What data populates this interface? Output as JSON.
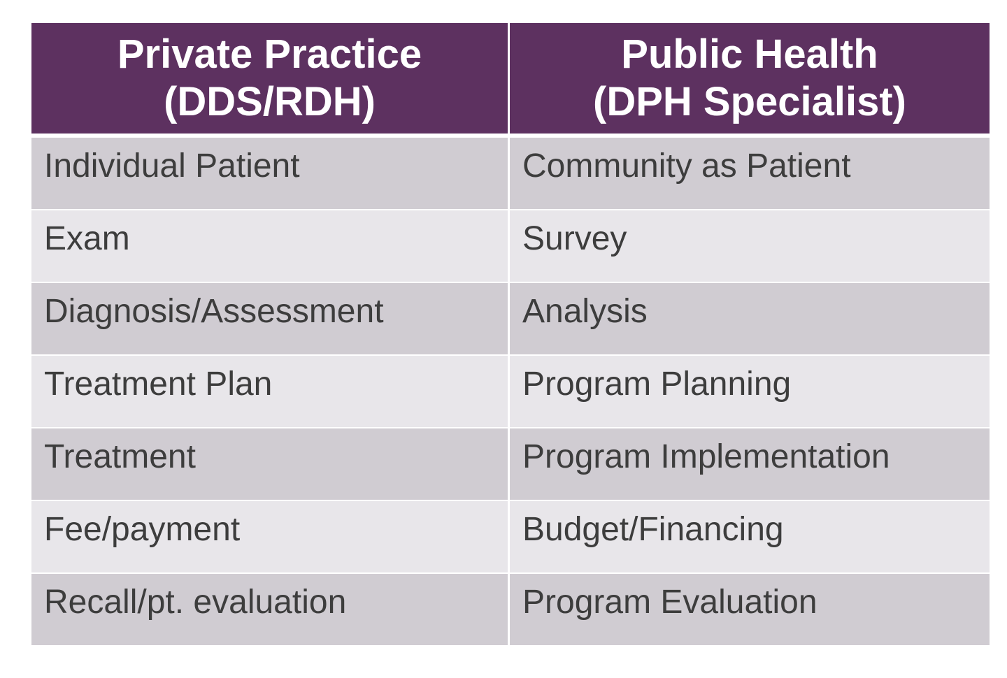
{
  "table": {
    "headers": [
      {
        "line1": "Private Practice",
        "line2": "(DDS/RDH)"
      },
      {
        "line1": "Public Health",
        "line2": "(DPH Specialist)"
      }
    ],
    "rows": [
      [
        "Individual Patient",
        "Community as Patient"
      ],
      [
        "Exam",
        "Survey"
      ],
      [
        "Diagnosis/Assessment",
        "Analysis"
      ],
      [
        "Treatment Plan",
        "Program Planning"
      ],
      [
        "Treatment",
        "Program Implementation"
      ],
      [
        "Fee/payment",
        "Budget/Financing"
      ],
      [
        "Recall/pt. evaluation",
        "Program Evaluation"
      ]
    ]
  },
  "colors": {
    "header_bg": "#5d3160",
    "header_text": "#ffffff",
    "row_dark": "#d0ccd2",
    "row_light": "#e8e6ea",
    "cell_text": "#3d3d3d"
  }
}
